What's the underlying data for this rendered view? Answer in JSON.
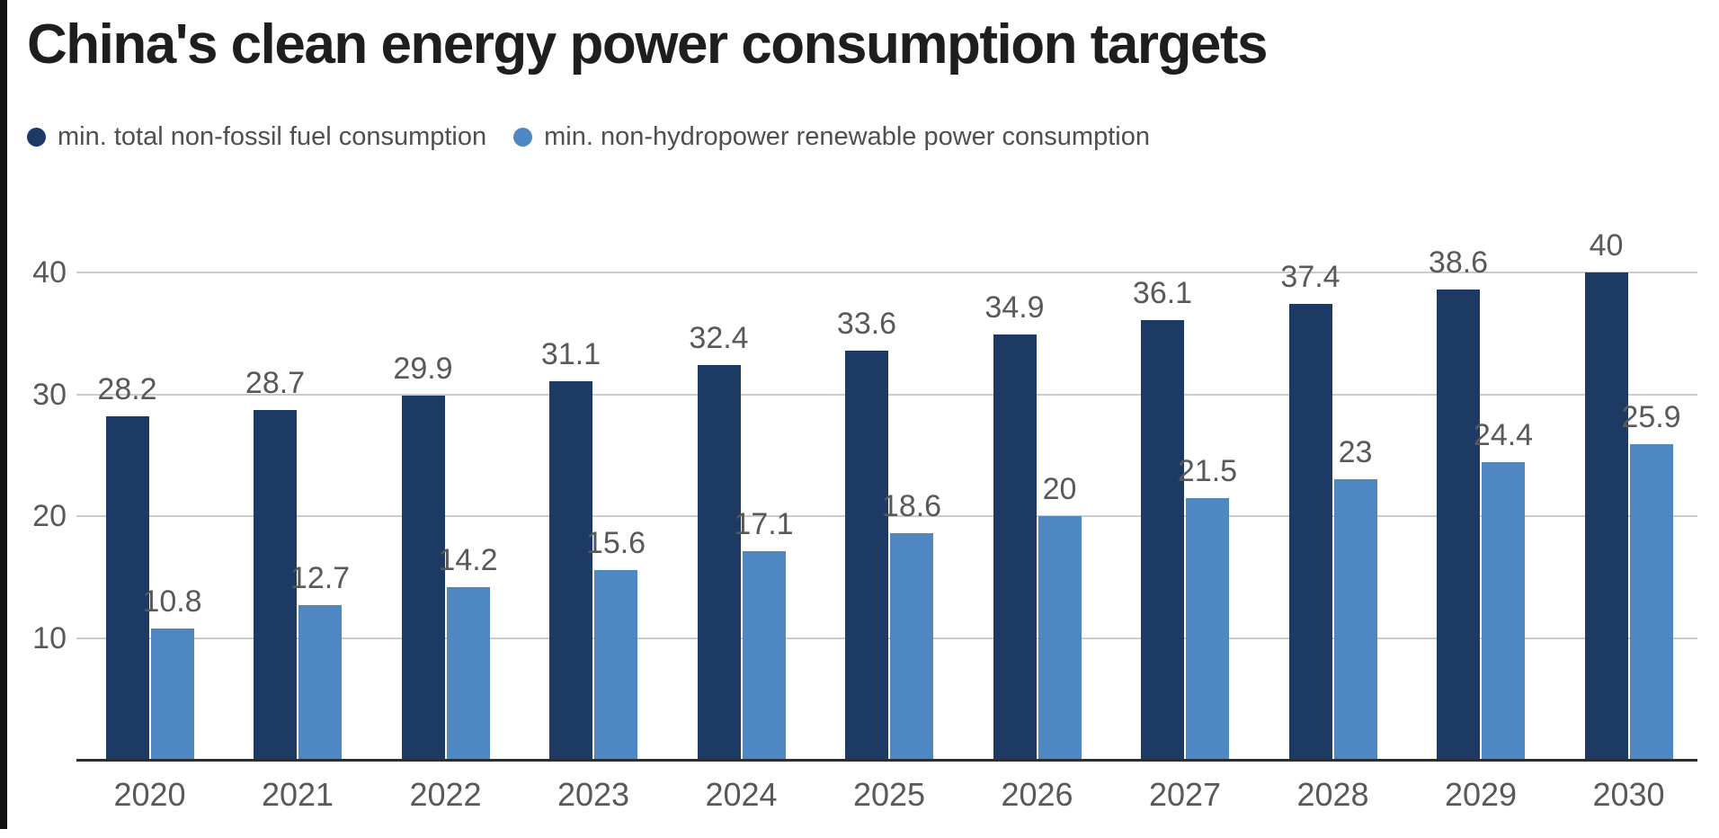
{
  "chart_data": {
    "type": "bar",
    "title": "China's clean energy power consumption targets",
    "categories": [
      "2020",
      "2021",
      "2022",
      "2023",
      "2024",
      "2025",
      "2026",
      "2027",
      "2028",
      "2029",
      "2030"
    ],
    "series": [
      {
        "name": "min. total non-fossil fuel consumption",
        "color": "#1c3a63",
        "values": [
          28.2,
          28.7,
          29.9,
          31.1,
          32.4,
          33.6,
          34.9,
          36.1,
          37.4,
          38.6,
          40
        ]
      },
      {
        "name": "min. non-hydropower renewable power consumption",
        "color": "#4e87c2",
        "values": [
          10.8,
          12.7,
          14.2,
          15.6,
          17.1,
          18.6,
          20,
          21.5,
          23,
          24.4,
          25.9
        ]
      }
    ],
    "ylabel": "",
    "xlabel": "",
    "yticks": [
      10,
      20,
      30,
      40
    ],
    "ylim": [
      0,
      42
    ],
    "grid": true,
    "legend_position": "top",
    "value_labels_shown": true,
    "colors": {
      "title_text": "#1e1e1e",
      "label_text": "#595959",
      "legend_text": "#4f4f4f",
      "gridline": "#cccccc",
      "axis_line": "#2e2e2e",
      "background": "#ffffff"
    }
  }
}
